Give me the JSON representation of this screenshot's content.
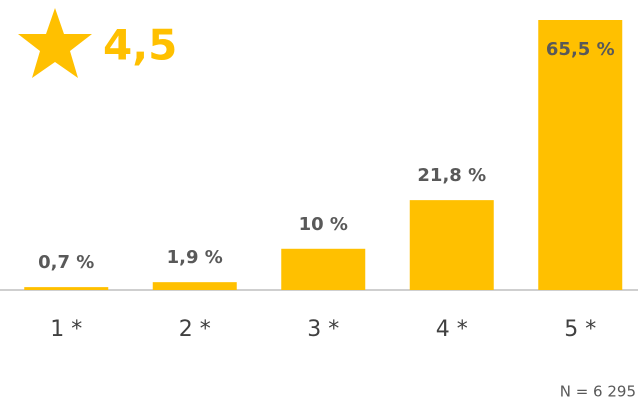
{
  "chart_data": {
    "type": "bar",
    "rating": "4,5",
    "note": "N = 6 295",
    "categories": [
      "1 *",
      "2 *",
      "3 *",
      "4 *",
      "5 *"
    ],
    "values": [
      0.7,
      1.9,
      10,
      21.8,
      65.5
    ],
    "value_labels": [
      "0,7 %",
      "1,9 %",
      "10 %",
      "21,8 %",
      "65,5 %"
    ],
    "color": "#FFC000"
  }
}
